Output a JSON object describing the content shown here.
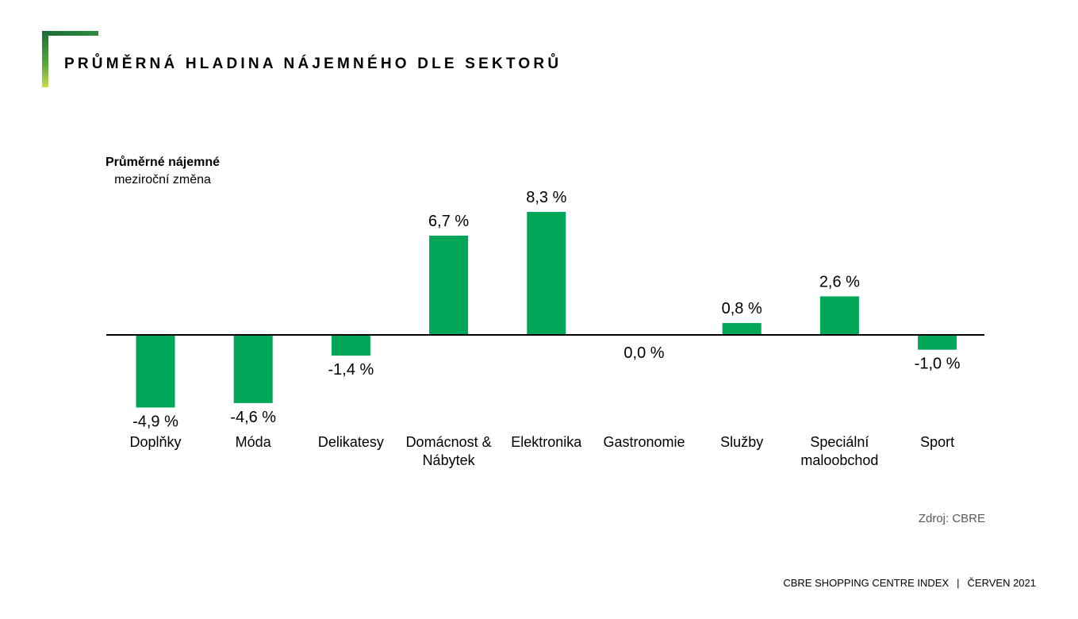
{
  "page": {
    "title": "PRŮMĚRNÁ HLADINA NÁJEMNÉHO DLE SEKTORŮ",
    "source": "Zdroj: CBRE",
    "footer_left": "CBRE SHOPPING CENTRE INDEX",
    "footer_sep": "|",
    "footer_right": "ČERVEN 2021"
  },
  "colors": {
    "bar": "#00a657",
    "axis": "#000000",
    "accent_dark": "#1a6b37",
    "accent_light": "#c9de4a"
  },
  "chart_data": {
    "type": "bar",
    "ylabel_line1": "Průměrné nájemné",
    "ylabel_line2": "meziroční změna",
    "categories": [
      [
        "Doplňky"
      ],
      [
        "Móda"
      ],
      [
        "Delikatesy"
      ],
      [
        "Domácnost &",
        "Nábytek"
      ],
      [
        "Elektronika"
      ],
      [
        "Gastronomie"
      ],
      [
        "Služby"
      ],
      [
        "Speciální",
        "maloobchod"
      ],
      [
        "Sport"
      ]
    ],
    "values": [
      -4.9,
      -4.6,
      -1.4,
      6.7,
      8.3,
      0.0,
      0.8,
      2.6,
      -1.0
    ],
    "value_labels": [
      "-4,9 %",
      "-4,6 %",
      "-1,4 %",
      "6,7 %",
      "8,3 %",
      "0,0 %",
      "0,8 %",
      "2,6 %",
      "-1,0 %"
    ],
    "grid": false,
    "legend": "none"
  }
}
